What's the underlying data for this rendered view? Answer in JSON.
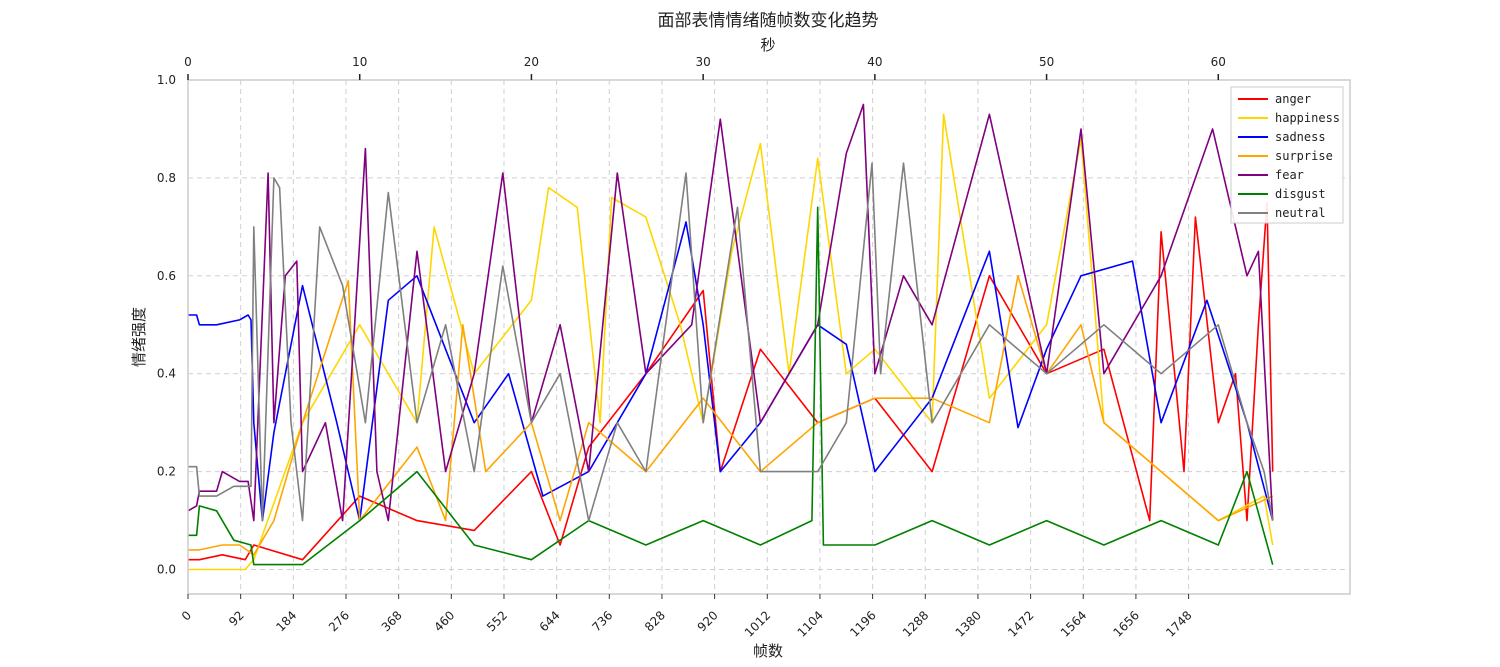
{
  "chart_data": {
    "type": "line",
    "title": "面部表情情绪随帧数变化趋势",
    "xlabel": "帧数",
    "ylabel": "情绪强度",
    "x2label": "秒",
    "xlim": [
      0,
      2030
    ],
    "ylim": [
      -0.05,
      1.0
    ],
    "x2lim": [
      0,
      67.67
    ],
    "xticks": [
      0,
      92,
      184,
      276,
      368,
      460,
      552,
      644,
      736,
      828,
      920,
      1012,
      1104,
      1196,
      1288,
      1380,
      1472,
      1564,
      1656,
      1748
    ],
    "x2ticks": [
      0,
      10,
      20,
      30,
      40,
      50,
      60
    ],
    "yticks": [
      0.0,
      0.2,
      0.4,
      0.6,
      0.8,
      1.0
    ],
    "ytick_labels": [
      "0.0",
      "0.2",
      "0.4",
      "0.6",
      "0.8",
      "1.0"
    ],
    "grid": true,
    "legend_position": "top-right",
    "series": [
      {
        "name": "anger",
        "color": "#ff0000",
        "x": [
          0,
          20,
          60,
          100,
          115,
          200,
          300,
          400,
          500,
          600,
          650,
          700,
          800,
          900,
          930,
          1000,
          1100,
          1200,
          1300,
          1400,
          1500,
          1600,
          1680,
          1700,
          1740,
          1760,
          1800,
          1830,
          1850,
          1870,
          1885,
          1895
        ],
        "y": [
          0.02,
          0.02,
          0.03,
          0.02,
          0.05,
          0.02,
          0.15,
          0.1,
          0.08,
          0.2,
          0.05,
          0.25,
          0.4,
          0.57,
          0.2,
          0.45,
          0.3,
          0.35,
          0.2,
          0.6,
          0.4,
          0.45,
          0.1,
          0.69,
          0.2,
          0.72,
          0.3,
          0.4,
          0.1,
          0.5,
          0.75,
          0.2
        ]
      },
      {
        "name": "happiness",
        "color": "#ffd700",
        "x": [
          0,
          100,
          115,
          200,
          300,
          400,
          430,
          500,
          600,
          630,
          680,
          720,
          740,
          800,
          860,
          900,
          950,
          1000,
          1050,
          1100,
          1150,
          1200,
          1300,
          1320,
          1400,
          1500,
          1560,
          1600,
          1700,
          1800,
          1880,
          1895
        ],
        "y": [
          0.0,
          0.0,
          0.02,
          0.3,
          0.5,
          0.3,
          0.7,
          0.4,
          0.55,
          0.78,
          0.74,
          0.3,
          0.76,
          0.72,
          0.5,
          0.3,
          0.65,
          0.87,
          0.4,
          0.84,
          0.4,
          0.45,
          0.3,
          0.93,
          0.35,
          0.5,
          0.88,
          0.3,
          0.2,
          0.1,
          0.15,
          0.05
        ]
      },
      {
        "name": "sadness",
        "color": "#0000ff",
        "x": [
          0,
          15,
          20,
          50,
          90,
          105,
          110,
          115,
          130,
          150,
          200,
          260,
          300,
          350,
          400,
          500,
          560,
          620,
          700,
          800,
          870,
          900,
          930,
          1000,
          1050,
          1100,
          1150,
          1200,
          1300,
          1400,
          1450,
          1500,
          1560,
          1650,
          1700,
          1780,
          1850,
          1895
        ],
        "y": [
          0.52,
          0.52,
          0.5,
          0.5,
          0.51,
          0.52,
          0.51,
          0.3,
          0.1,
          0.28,
          0.58,
          0.3,
          0.1,
          0.55,
          0.6,
          0.3,
          0.4,
          0.15,
          0.2,
          0.4,
          0.71,
          0.5,
          0.2,
          0.3,
          0.4,
          0.5,
          0.46,
          0.2,
          0.35,
          0.65,
          0.29,
          0.45,
          0.6,
          0.63,
          0.3,
          0.55,
          0.3,
          0.1
        ]
      },
      {
        "name": "surprise",
        "color": "#ffa500",
        "x": [
          0,
          20,
          60,
          90,
          115,
          150,
          200,
          280,
          300,
          400,
          450,
          480,
          520,
          600,
          650,
          700,
          800,
          900,
          1000,
          1100,
          1200,
          1300,
          1400,
          1450,
          1500,
          1560,
          1600,
          1700,
          1800,
          1895
        ],
        "y": [
          0.04,
          0.04,
          0.05,
          0.05,
          0.03,
          0.1,
          0.3,
          0.59,
          0.1,
          0.25,
          0.1,
          0.5,
          0.2,
          0.3,
          0.1,
          0.3,
          0.2,
          0.35,
          0.2,
          0.3,
          0.35,
          0.35,
          0.3,
          0.6,
          0.4,
          0.5,
          0.3,
          0.2,
          0.1,
          0.15
        ]
      },
      {
        "name": "fear",
        "color": "#800080",
        "x": [
          0,
          15,
          20,
          50,
          60,
          90,
          105,
          115,
          140,
          150,
          170,
          190,
          200,
          240,
          270,
          310,
          330,
          350,
          400,
          450,
          500,
          550,
          600,
          650,
          700,
          750,
          800,
          880,
          930,
          1000,
          1100,
          1150,
          1180,
          1200,
          1250,
          1300,
          1400,
          1500,
          1560,
          1600,
          1700,
          1790,
          1850,
          1870,
          1895
        ],
        "y": [
          0.12,
          0.13,
          0.16,
          0.16,
          0.2,
          0.18,
          0.18,
          0.1,
          0.81,
          0.3,
          0.6,
          0.63,
          0.2,
          0.3,
          0.1,
          0.86,
          0.2,
          0.1,
          0.65,
          0.2,
          0.4,
          0.81,
          0.3,
          0.5,
          0.2,
          0.81,
          0.4,
          0.5,
          0.92,
          0.3,
          0.5,
          0.85,
          0.95,
          0.4,
          0.6,
          0.5,
          0.93,
          0.4,
          0.9,
          0.4,
          0.6,
          0.9,
          0.6,
          0.65,
          0.1
        ]
      },
      {
        "name": "disgust",
        "color": "#008000",
        "x": [
          0,
          15,
          20,
          50,
          80,
          110,
          115,
          200,
          300,
          400,
          500,
          600,
          700,
          800,
          900,
          1000,
          1090,
          1100,
          1110,
          1200,
          1300,
          1400,
          1500,
          1600,
          1700,
          1800,
          1850,
          1895
        ],
        "y": [
          0.07,
          0.07,
          0.13,
          0.12,
          0.06,
          0.05,
          0.01,
          0.01,
          0.1,
          0.2,
          0.05,
          0.02,
          0.1,
          0.05,
          0.1,
          0.05,
          0.1,
          0.74,
          0.05,
          0.05,
          0.1,
          0.05,
          0.1,
          0.05,
          0.1,
          0.05,
          0.2,
          0.01
        ]
      },
      {
        "name": "neutral",
        "color": "#808080",
        "x": [
          0,
          15,
          20,
          50,
          80,
          110,
          115,
          130,
          150,
          160,
          180,
          200,
          230,
          270,
          310,
          350,
          400,
          450,
          500,
          550,
          600,
          650,
          700,
          750,
          800,
          870,
          900,
          960,
          1000,
          1100,
          1150,
          1195,
          1210,
          1250,
          1300,
          1400,
          1500,
          1600,
          1700,
          1800,
          1850,
          1880,
          1895
        ],
        "y": [
          0.21,
          0.21,
          0.15,
          0.15,
          0.17,
          0.17,
          0.7,
          0.1,
          0.8,
          0.78,
          0.3,
          0.1,
          0.7,
          0.58,
          0.3,
          0.77,
          0.3,
          0.5,
          0.2,
          0.62,
          0.3,
          0.4,
          0.1,
          0.3,
          0.2,
          0.81,
          0.3,
          0.74,
          0.2,
          0.2,
          0.3,
          0.83,
          0.4,
          0.83,
          0.3,
          0.5,
          0.4,
          0.5,
          0.4,
          0.5,
          0.3,
          0.2,
          0.1
        ]
      }
    ]
  }
}
